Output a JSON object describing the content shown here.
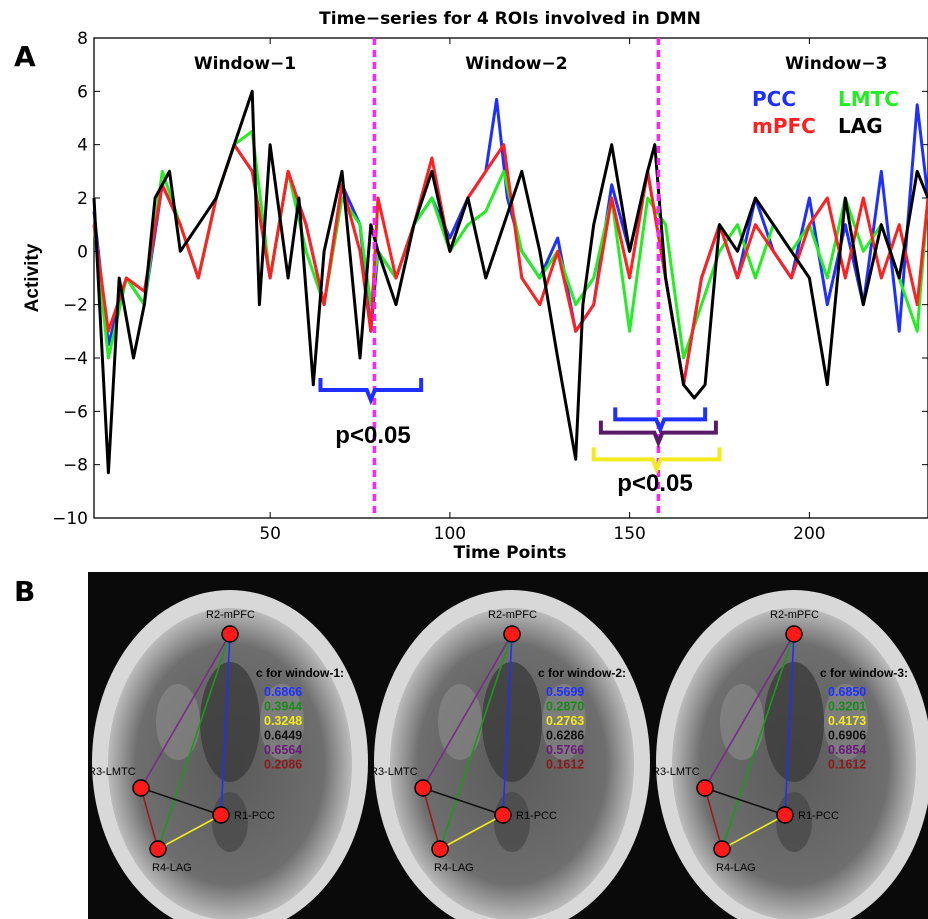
{
  "panel_a_label": "A",
  "panel_b_label": "B",
  "chart_data": {
    "type": "line",
    "title": "Time−series for 4 ROIs involved in DMN",
    "xlabel": "Time Points",
    "ylabel": "Activity",
    "xlim": [
      1,
      233
    ],
    "ylim": [
      -10,
      8
    ],
    "xticks": [
      "50",
      "100",
      "150",
      "200"
    ],
    "yticks": [
      "−10",
      "−8",
      "−6",
      "−4",
      "−2",
      "0",
      "2",
      "4",
      "6",
      "8"
    ],
    "window_boundaries": [
      79,
      158
    ],
    "windows": [
      "Window−1",
      "Window−2",
      "Window−3"
    ],
    "significance_labels": [
      "p<0.05",
      "p<0.05"
    ],
    "legend": {
      "placement": "top-right",
      "entries": [
        "PCC",
        "LMTC",
        "mPFC",
        "LAG"
      ]
    },
    "series": [
      {
        "name": "PCC",
        "color": "#1f2fff",
        "x": [
          1,
          5,
          10,
          15,
          20,
          25,
          30,
          35,
          40,
          45,
          50,
          55,
          60,
          65,
          70,
          75,
          78,
          80,
          85,
          90,
          95,
          100,
          105,
          110,
          113,
          116,
          120,
          125,
          130,
          135,
          140,
          145,
          150,
          155,
          160,
          165,
          170,
          175,
          180,
          185,
          190,
          195,
          200,
          205,
          210,
          215,
          220,
          225,
          230,
          233
        ],
        "y": [
          1.5,
          -3.5,
          -1,
          -2,
          2.5,
          1,
          -1,
          2,
          4,
          3,
          -1,
          3,
          1,
          -2,
          2.5,
          1,
          -3,
          0,
          -1,
          1,
          2,
          0.5,
          2,
          3,
          5.7,
          2,
          0,
          -1,
          0.5,
          -3,
          -2,
          2.5,
          0,
          3,
          -1,
          -5,
          -1,
          1,
          -1,
          2,
          0,
          -1,
          2,
          -2,
          1,
          -2,
          3,
          -3,
          5.5,
          2
        ]
      },
      {
        "name": "LMTC",
        "color": "#22ee22",
        "x": [
          1,
          5,
          10,
          15,
          20,
          25,
          30,
          35,
          40,
          45,
          50,
          55,
          60,
          65,
          70,
          75,
          78,
          80,
          85,
          90,
          95,
          100,
          105,
          110,
          115,
          120,
          125,
          130,
          135,
          140,
          145,
          150,
          155,
          160,
          165,
          170,
          175,
          180,
          185,
          190,
          195,
          200,
          205,
          210,
          215,
          220,
          225,
          230,
          233
        ],
        "y": [
          1,
          -4,
          -1,
          -2,
          3,
          1,
          -1,
          2,
          4,
          4.5,
          -1,
          3,
          0,
          -2,
          2,
          1,
          -2,
          0,
          -1,
          1,
          2,
          0,
          1,
          1.5,
          3,
          0,
          -1,
          0,
          -2,
          -1,
          2,
          -3,
          2,
          1,
          -4,
          -2,
          0,
          1,
          -1,
          1,
          0,
          1,
          -1,
          2,
          0,
          1,
          -1,
          -3,
          2
        ]
      },
      {
        "name": "mPFC",
        "color": "#ff2020",
        "x": [
          1,
          5,
          10,
          15,
          20,
          25,
          30,
          35,
          40,
          45,
          50,
          55,
          60,
          65,
          70,
          75,
          78,
          80,
          85,
          90,
          95,
          100,
          105,
          110,
          115,
          120,
          125,
          130,
          135,
          140,
          145,
          150,
          155,
          160,
          165,
          170,
          175,
          180,
          185,
          190,
          195,
          200,
          205,
          210,
          215,
          220,
          225,
          230,
          233
        ],
        "y": [
          1,
          -3,
          -1,
          -1.5,
          2.5,
          1,
          -1,
          2,
          4,
          3,
          -1,
          3,
          1,
          -2,
          2.5,
          0,
          -3,
          2,
          -1,
          1,
          3.5,
          0,
          2,
          3,
          4,
          -1,
          -2,
          0,
          -3,
          -2,
          2,
          -1,
          3,
          -1,
          -5,
          -1,
          1,
          -1,
          1,
          0,
          -1,
          1,
          2,
          -1,
          2,
          -1,
          1,
          -2,
          2
        ]
      },
      {
        "name": "LAG",
        "color": "#000000",
        "x": [
          1,
          5,
          8,
          12,
          15,
          18,
          22,
          25,
          30,
          35,
          40,
          45,
          47,
          50,
          55,
          58,
          62,
          65,
          70,
          75,
          78,
          80,
          85,
          90,
          95,
          100,
          105,
          110,
          115,
          120,
          125,
          130,
          135,
          137,
          140,
          145,
          150,
          155,
          157,
          160,
          165,
          168,
          171,
          175,
          180,
          185,
          190,
          195,
          200,
          205,
          210,
          215,
          220,
          225,
          230,
          233
        ],
        "y": [
          2,
          -8.3,
          -1,
          -4,
          -2,
          2,
          3,
          0,
          1,
          2,
          4,
          6,
          -2,
          4,
          -1,
          2,
          -5,
          0,
          3,
          -4,
          1,
          0,
          -2,
          1,
          3,
          0,
          2,
          -1,
          1,
          3,
          0,
          -4,
          -7.8,
          -2,
          1,
          4,
          0,
          3,
          4,
          -1,
          -5,
          -5.5,
          -5,
          1,
          0,
          2,
          1,
          0,
          -1,
          -5,
          2,
          -2,
          1,
          -1,
          3,
          2
        ]
      }
    ],
    "brackets": [
      {
        "color": "#1f2fff",
        "x_range": [
          64,
          92
        ],
        "y": -5.2
      },
      {
        "color": "#1f2fff",
        "x_range": [
          146,
          171
        ],
        "y": -6.3
      },
      {
        "color": "#5a1a6a",
        "x_range": [
          142,
          174
        ],
        "y": -6.8
      },
      {
        "color": "#f2ea1a",
        "x_range": [
          140,
          175
        ],
        "y": -7.8
      }
    ]
  },
  "brain_panels": [
    {
      "window_label": "c for window-1:",
      "nodes": {
        "mpfc": "R2-mPFC",
        "lmtc": "R3-LMTC",
        "pcc": "R1-PCC",
        "lag": "R4-LAG"
      },
      "values": [
        {
          "value": "0.6866",
          "color": "#1f2fff"
        },
        {
          "value": "0.3944",
          "color": "#1a8a1a"
        },
        {
          "value": "0.3248",
          "color": "#f2ea1a"
        },
        {
          "value": "0.6449",
          "color": "#111111"
        },
        {
          "value": "0.6564",
          "color": "#6a1a7a"
        },
        {
          "value": "0.2086",
          "color": "#8a1a1a"
        }
      ]
    },
    {
      "window_label": "c for window-2:",
      "nodes": {
        "mpfc": "R2-mPFC",
        "lmtc": "R3-LMTC",
        "pcc": "R1-PCC",
        "lag": "R4-LAG"
      },
      "values": [
        {
          "value": "0.5699",
          "color": "#1f2fff"
        },
        {
          "value": "0.2870",
          "color": "#1a8a1a"
        },
        {
          "value": "0.2763",
          "color": "#f2ea1a"
        },
        {
          "value": "0.6286",
          "color": "#111111"
        },
        {
          "value": "0.5766",
          "color": "#6a1a7a"
        },
        {
          "value": "0.1612",
          "color": "#8a1a1a"
        }
      ]
    },
    {
      "window_label": "c for window-3:",
      "nodes": {
        "mpfc": "R2-mPFC",
        "lmtc": "R3-LMTC",
        "pcc": "R1-PCC",
        "lag": "R4-LAG"
      },
      "values": [
        {
          "value": "0.6850",
          "color": "#1f2fff"
        },
        {
          "value": "0.3201",
          "color": "#1a8a1a"
        },
        {
          "value": "0.4173",
          "color": "#f2ea1a"
        },
        {
          "value": "0.6906",
          "color": "#111111"
        },
        {
          "value": "0.6854",
          "color": "#6a1a7a"
        },
        {
          "value": "0.1612",
          "color": "#8a1a1a"
        }
      ]
    }
  ],
  "edge_colors": {
    "mpfc_pcc": "#1f2fff",
    "mpfc_lag": "#1a9a1a",
    "pcc_lag": "#f2ea1a",
    "lmtc_pcc": "#111111",
    "mpfc_lmtc": "#7a2a8a",
    "lmtc_lag": "#9a1a1a"
  }
}
